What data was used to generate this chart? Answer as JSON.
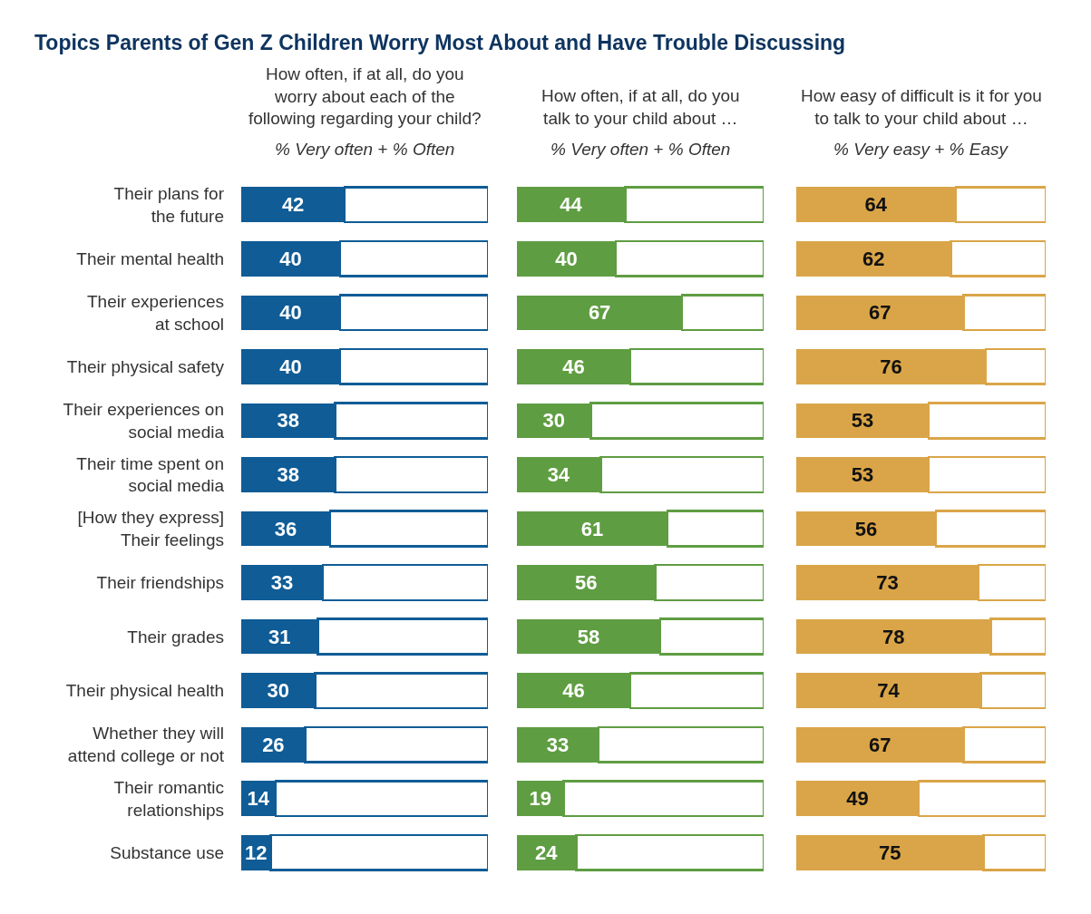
{
  "chart_data": [
    {
      "type": "bar",
      "orientation": "horizontal",
      "stacked": true,
      "title": "Topics Parents of Gen Z Children Worry Most About and Have Trouble Discussing",
      "subtitle": "How often, if at all, do you\nworry about each of the\nfollowing regarding your child?",
      "xlabel": "% Very often + % Often",
      "categories": [
        "Their plans for\nthe future",
        "Their mental health",
        "Their experiences\nat school",
        "Their physical safety",
        "Their experiences on\nsocial media",
        "Their time spent on\nsocial media",
        "[How they express]\nTheir feelings",
        "Their friendships",
        "Their grades",
        "Their physical health",
        "Whether they will\nattend college or not",
        "Their romantic\nrelationships",
        "Substance use"
      ],
      "series": [
        {
          "color": "#0f5c96",
          "values": [
            42,
            40,
            40,
            40,
            38,
            38,
            36,
            33,
            31,
            30,
            26,
            14,
            12
          ],
          "value_labels": [
            "42",
            "40",
            "40",
            "40",
            "38",
            "38",
            "36",
            "33",
            "31",
            "30",
            "26",
            "14",
            "12"
          ]
        },
        {
          "color": "#ffffff",
          "values": [
            58,
            60,
            60,
            60,
            62,
            62,
            64,
            67,
            69,
            70,
            74,
            86,
            88
          ]
        }
      ],
      "xlim": [
        0,
        100
      ],
      "tick_labels": "y"
    },
    {
      "type": "bar",
      "orientation": "horizontal",
      "stacked": true,
      "subtitle": "How often, if at all, do you\ntalk to your child about …",
      "xlabel": "% Very often + % Often",
      "categories": [
        "Their plans for\nthe future",
        "Their mental health",
        "Their experiences\nat school",
        "Their physical safety",
        "Their experiences on\nsocial media",
        "Their time spent on\nsocial media",
        "[How they express]\nTheir feelings",
        "Their friendships",
        "Their grades",
        "Their physical health",
        "Whether they will\nattend college or not",
        "Their romantic\nrelationships",
        "Substance use"
      ],
      "series": [
        {
          "color": "#5f9d42",
          "values": [
            44,
            40,
            67,
            46,
            30,
            34,
            61,
            56,
            58,
            46,
            33,
            19,
            24
          ],
          "value_labels": [
            "44",
            "40",
            "67",
            "46",
            "30",
            "34",
            "61",
            "56",
            "58",
            "46",
            "33",
            "19",
            "24"
          ]
        },
        {
          "color": "#ffffff",
          "values": [
            56,
            60,
            33,
            54,
            70,
            66,
            39,
            44,
            42,
            54,
            67,
            81,
            76
          ]
        }
      ],
      "xlim": [
        0,
        100
      ],
      "tick_labels": false
    },
    {
      "type": "bar",
      "orientation": "horizontal",
      "stacked": true,
      "subtitle": "How easy of difficult is it for you\nto talk to your child about …",
      "xlabel": "% Very easy + % Easy",
      "categories": [
        "Their plans for\nthe future",
        "Their mental health",
        "Their experiences\nat school",
        "Their physical safety",
        "Their experiences on\nsocial media",
        "Their time spent on\nsocial media",
        "[How they express]\nTheir feelings",
        "Their friendships",
        "Their grades",
        "Their physical health",
        "Whether they will\nattend college or not",
        "Their romantic\nrelationships",
        "Substance use"
      ],
      "series": [
        {
          "color": "#daa548",
          "values": [
            64,
            62,
            67,
            76,
            53,
            53,
            56,
            73,
            78,
            74,
            67,
            49,
            75
          ],
          "value_labels": [
            "64",
            "62",
            "67",
            "76",
            "53",
            "53",
            "56",
            "73",
            "78",
            "74",
            "67",
            "49",
            "75"
          ]
        },
        {
          "color": "#ffffff",
          "values": [
            36,
            38,
            33,
            24,
            47,
            47,
            44,
            27,
            22,
            26,
            33,
            51,
            25
          ]
        }
      ],
      "xlim": [
        0,
        100
      ],
      "tick_labels": false
    }
  ]
}
